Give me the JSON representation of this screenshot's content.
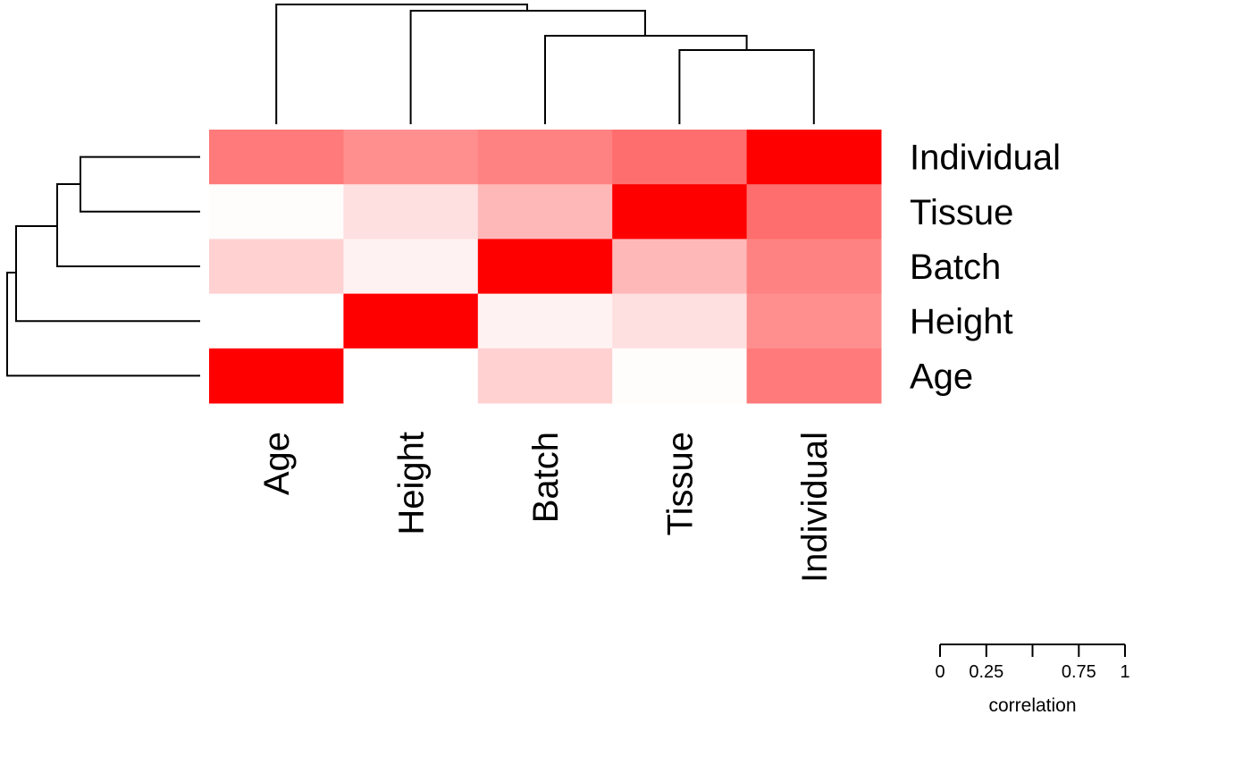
{
  "chart_data": {
    "type": "heatmap",
    "title": "",
    "xlabel": "",
    "ylabel": "",
    "columns": [
      "Age",
      "Height",
      "Batch",
      "Tissue",
      "Individual"
    ],
    "rows": [
      "Individual",
      "Tissue",
      "Batch",
      "Height",
      "Age"
    ],
    "values": [
      [
        0.52,
        0.44,
        0.49,
        0.57,
        1.0
      ],
      [
        0.01,
        0.12,
        0.28,
        1.0,
        0.57
      ],
      [
        0.18,
        0.05,
        1.0,
        0.28,
        0.49
      ],
      [
        0.0,
        1.0,
        0.05,
        0.12,
        0.44
      ],
      [
        1.0,
        0.0,
        0.18,
        0.01,
        0.52
      ]
    ],
    "color_low": "#ffffff",
    "color_high": "#ff0000",
    "legend": {
      "title": "correlation",
      "ticks": [
        0,
        0.25,
        0.5,
        0.75,
        1
      ],
      "tick_labels": [
        "0",
        "0.25",
        "",
        "0.75",
        "1"
      ],
      "range": [
        0,
        1
      ]
    },
    "column_dendrogram": "((Age,(Height,(Batch,(Tissue,Individual)))))",
    "row_dendrogram": "(Age,(Height,(Batch,(Tissue,Individual))))"
  }
}
